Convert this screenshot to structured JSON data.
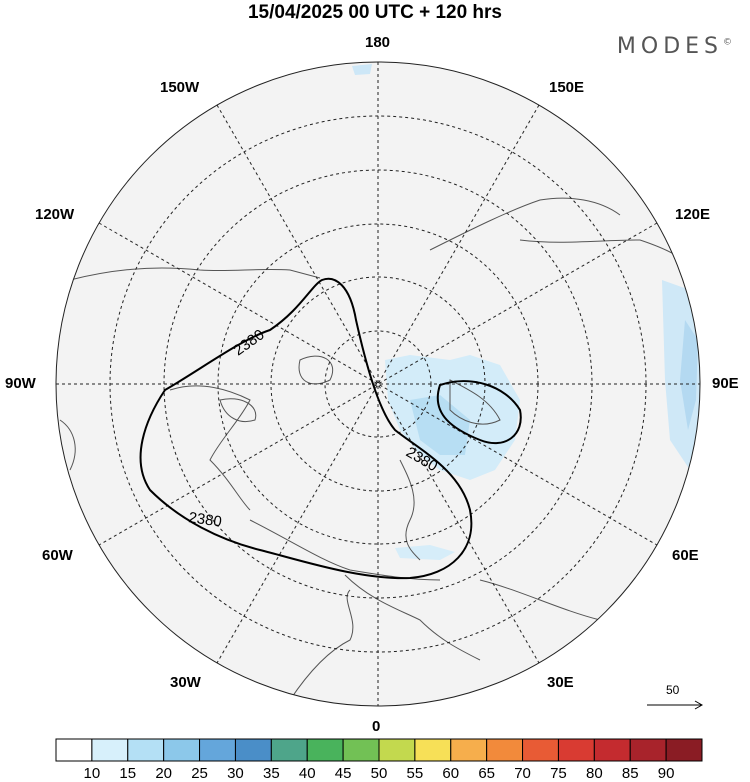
{
  "title": "15/04/2025  00 UTC  + 120 hrs",
  "brand": "MODES",
  "brand_mark": "©",
  "longitude_labels": {
    "top": "180",
    "bottom": "0",
    "left": "90W",
    "right": "90E",
    "upper_left_1": "150W",
    "upper_left_2": "120W",
    "upper_right_1": "150E",
    "upper_right_2": "120E",
    "lower_left_1": "60W",
    "lower_left_2": "30W",
    "lower_right_1": "60E",
    "lower_right_2": "30E"
  },
  "contour_label": "2380",
  "vector_reference": "50",
  "colorbar": {
    "labels": [
      "10",
      "15",
      "20",
      "25",
      "30",
      "35",
      "40",
      "45",
      "50",
      "55",
      "60",
      "65",
      "70",
      "75",
      "80",
      "85",
      "90"
    ],
    "colors": [
      "#ffffff",
      "#d7f0fb",
      "#b4e0f5",
      "#8cc8ea",
      "#64a6db",
      "#4a8ec8",
      "#4ea58a",
      "#49b35c",
      "#72c155",
      "#c3d94e",
      "#f7e057",
      "#f6ae4c",
      "#f28a3b",
      "#e85b35",
      "#d93b32",
      "#c42b2f",
      "#a8232b",
      "#8a1c24"
    ]
  }
}
